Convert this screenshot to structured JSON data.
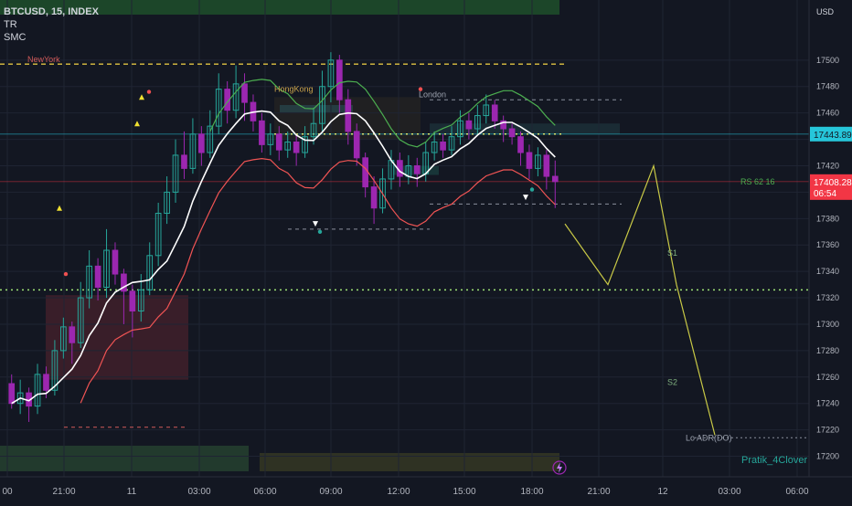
{
  "header": {
    "symbol_line": "BTCUSD, 15, INDEX",
    "indicators": [
      "TR",
      "SMC"
    ]
  },
  "price_axis": {
    "currency": "USD",
    "current_price": "17443.89",
    "last_price": "17408.28",
    "countdown": "06:54"
  },
  "annotations": {
    "session_newyork": "NewYork",
    "session_hongkong": "HongKong",
    "session_london": "London",
    "rs_label": "RS 62 16",
    "s1": "S1",
    "s2": "S2",
    "lo_adr": "Lo ADR(DO)",
    "author": "Pratik_4Clover"
  },
  "colors": {
    "background": "#131722",
    "bull": "#26a69a",
    "bear": "#9c27b0",
    "vwap": "#ffffff",
    "support_band": "#f05454",
    "resistance_band": "#4caf50",
    "projection": "#c9c946",
    "current_price_bg": "#26c6da",
    "last_price_bg": "#f23645"
  },
  "chart_data": {
    "type": "candlestick",
    "y_axis": {
      "min": 17190,
      "max": 17540,
      "ticks": [
        17200,
        17220,
        17240,
        17260,
        17280,
        17300,
        17320,
        17340,
        17360,
        17380,
        17400,
        17420,
        17440,
        17460,
        17480,
        17500
      ]
    },
    "x_axis": {
      "labels": [
        "00",
        "21:00",
        "11",
        "03:00",
        "06:00",
        "09:00",
        "12:00",
        "15:00",
        "18:00",
        "21:00",
        "12",
        "03:00",
        "06:00"
      ]
    },
    "candles": [
      [
        17255,
        17240,
        17262,
        17236
      ],
      [
        17240,
        17248,
        17258,
        17232
      ],
      [
        17248,
        17238,
        17252,
        17226
      ],
      [
        17238,
        17262,
        17270,
        17232
      ],
      [
        17262,
        17250,
        17268,
        17244
      ],
      [
        17250,
        17280,
        17288,
        17246
      ],
      [
        17280,
        17298,
        17305,
        17274
      ],
      [
        17298,
        17286,
        17302,
        17270
      ],
      [
        17286,
        17320,
        17332,
        17282
      ],
      [
        17320,
        17344,
        17356,
        17312
      ],
      [
        17344,
        17328,
        17350,
        17318
      ],
      [
        17328,
        17356,
        17372,
        17320
      ],
      [
        17356,
        17338,
        17362,
        17330
      ],
      [
        17338,
        17325,
        17342,
        17300
      ],
      [
        17325,
        17310,
        17330,
        17290
      ],
      [
        17310,
        17326,
        17338,
        17302
      ],
      [
        17326,
        17352,
        17362,
        17322
      ],
      [
        17352,
        17384,
        17392,
        17344
      ],
      [
        17384,
        17400,
        17412,
        17376
      ],
      [
        17400,
        17428,
        17440,
        17392
      ],
      [
        17428,
        17418,
        17446,
        17410
      ],
      [
        17418,
        17444,
        17456,
        17414
      ],
      [
        17444,
        17430,
        17450,
        17420
      ],
      [
        17430,
        17450,
        17462,
        17426
      ],
      [
        17450,
        17478,
        17490,
        17444
      ],
      [
        17478,
        17462,
        17484,
        17452
      ],
      [
        17462,
        17482,
        17496,
        17456
      ],
      [
        17482,
        17468,
        17490,
        17454
      ],
      [
        17468,
        17454,
        17474,
        17446
      ],
      [
        17454,
        17436,
        17460,
        17430
      ],
      [
        17436,
        17444,
        17452,
        17428
      ],
      [
        17444,
        17432,
        17450,
        17424
      ],
      [
        17432,
        17438,
        17446,
        17426
      ],
      [
        17438,
        17430,
        17444,
        17420
      ],
      [
        17430,
        17442,
        17450,
        17426
      ],
      [
        17442,
        17452,
        17464,
        17436
      ],
      [
        17452,
        17480,
        17492,
        17446
      ],
      [
        17480,
        17500,
        17506,
        17468
      ],
      [
        17500,
        17470,
        17504,
        17460
      ],
      [
        17470,
        17446,
        17478,
        17436
      ],
      [
        17446,
        17426,
        17452,
        17420
      ],
      [
        17426,
        17404,
        17430,
        17396
      ],
      [
        17404,
        17388,
        17412,
        17376
      ],
      [
        17388,
        17410,
        17418,
        17384
      ],
      [
        17410,
        17424,
        17432,
        17402
      ],
      [
        17424,
        17412,
        17430,
        17404
      ],
      [
        17412,
        17420,
        17428,
        17406
      ],
      [
        17420,
        17414,
        17426,
        17404
      ],
      [
        17414,
        17430,
        17438,
        17408
      ],
      [
        17430,
        17438,
        17446,
        17424
      ],
      [
        17438,
        17432,
        17444,
        17426
      ],
      [
        17432,
        17442,
        17450,
        17428
      ],
      [
        17442,
        17454,
        17462,
        17436
      ],
      [
        17454,
        17448,
        17460,
        17440
      ],
      [
        17448,
        17458,
        17466,
        17444
      ],
      [
        17458,
        17466,
        17474,
        17452
      ],
      [
        17466,
        17454,
        17470,
        17448
      ],
      [
        17454,
        17448,
        17458,
        17438
      ],
      [
        17448,
        17442,
        17452,
        17436
      ],
      [
        17442,
        17430,
        17446,
        17420
      ],
      [
        17430,
        17418,
        17436,
        17410
      ],
      [
        17418,
        17428,
        17434,
        17412
      ],
      [
        17428,
        17412,
        17432,
        17402
      ],
      [
        17412,
        17408,
        17424,
        17388
      ]
    ],
    "projection_path": [
      [
        17376,
        0
      ],
      [
        17330,
        1
      ],
      [
        17420,
        2
      ],
      [
        17330,
        3
      ],
      [
        17216,
        4
      ]
    ]
  }
}
